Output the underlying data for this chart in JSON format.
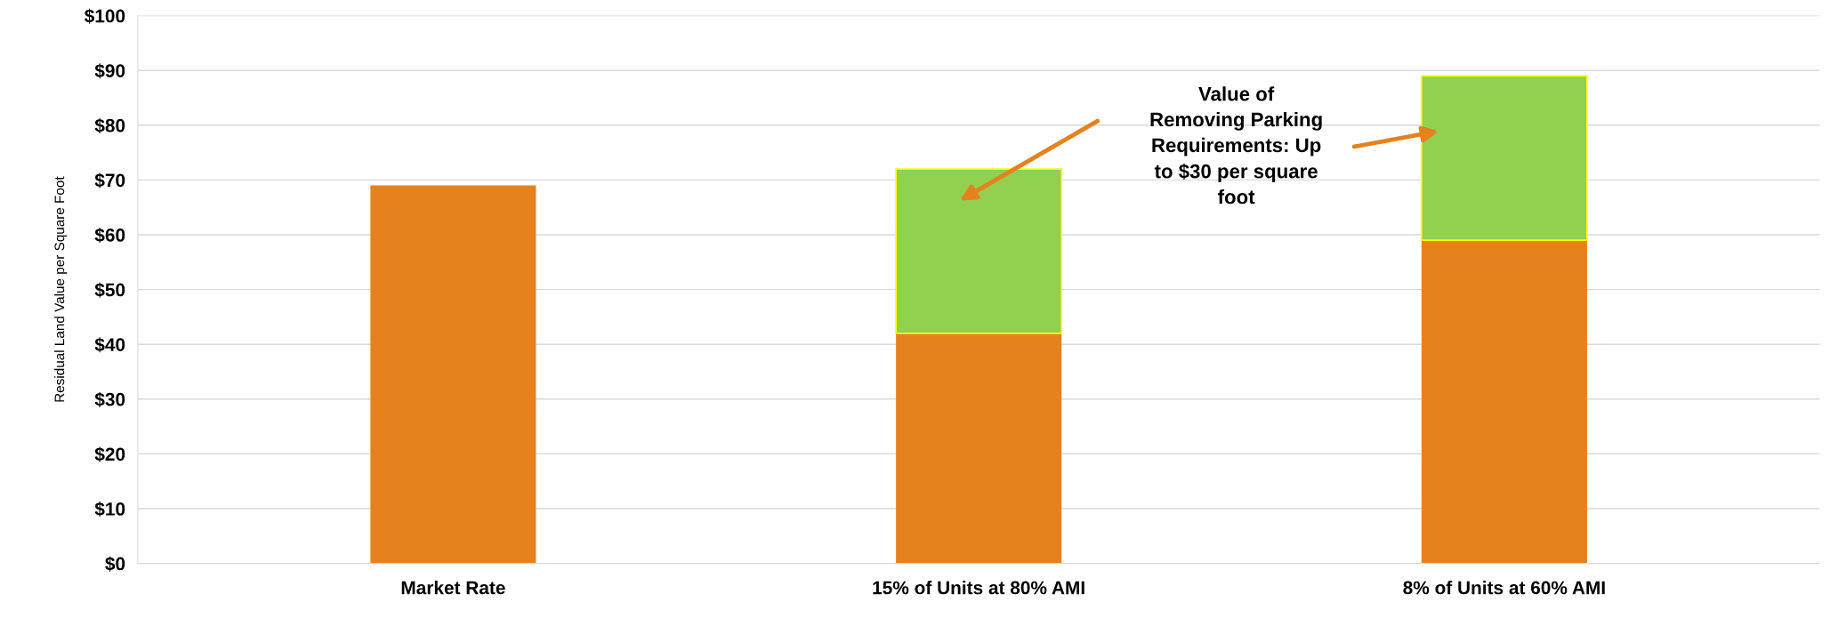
{
  "chart_data": {
    "type": "bar",
    "stacked": true,
    "ylabel": "Residual Land Value per Square Foot",
    "categories": [
      "Market Rate",
      "15% of Units at 80% AMI",
      "8% of Units at 60% AMI"
    ],
    "series": [
      {
        "color": "#e6821e",
        "values": [
          69,
          42,
          59
        ]
      },
      {
        "color": "#92d050",
        "values": [
          null,
          30,
          30
        ]
      }
    ],
    "ylim": [
      0,
      100
    ],
    "yticks": [
      {
        "value": 0,
        "label": "$0"
      },
      {
        "value": 10,
        "label": "$10"
      },
      {
        "value": 20,
        "label": "$20"
      },
      {
        "value": 30,
        "label": "$30"
      },
      {
        "value": 40,
        "label": "$40"
      },
      {
        "value": 50,
        "label": "$50"
      },
      {
        "value": 60,
        "label": "$60"
      },
      {
        "value": 70,
        "label": "$70"
      },
      {
        "value": 80,
        "label": "$80"
      },
      {
        "value": 90,
        "label": "$90"
      },
      {
        "value": 100,
        "label": "$100"
      }
    ],
    "grid": "y",
    "annotations": [
      "Value of\nRemoving Parking\nRequirements: Up\nto $30 per square\nfoot"
    ]
  }
}
